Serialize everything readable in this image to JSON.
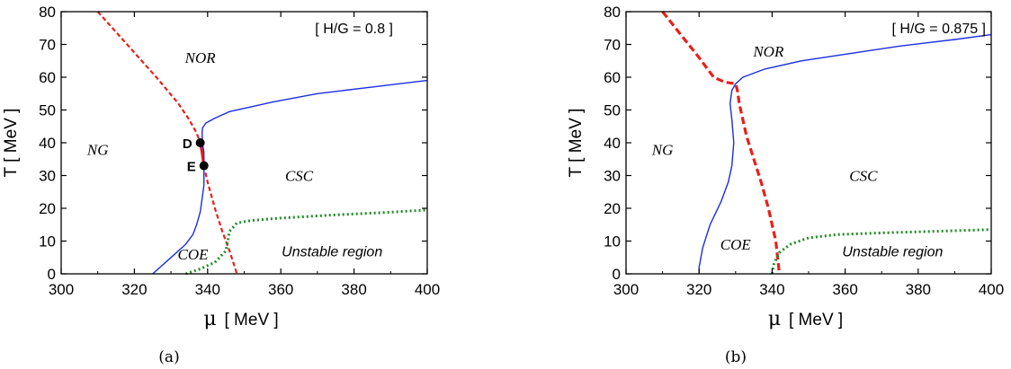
{
  "chart_data": [
    {
      "type": "line",
      "panel_label": "(a)",
      "annotation": "[ H/G  =  0.8 ]",
      "xlabel_symbol": "μ",
      "xlabel_unit": "[ MeV ]",
      "ylabel": "T [ MeV ]",
      "xlim": [
        300,
        400
      ],
      "ylim": [
        0,
        80
      ],
      "xticks": [
        300,
        320,
        340,
        360,
        380,
        400
      ],
      "yticks": [
        0,
        10,
        20,
        30,
        40,
        50,
        60,
        70,
        80
      ],
      "region_labels": [
        {
          "text": "NOR",
          "x": 338,
          "y": 66
        },
        {
          "text": "NG",
          "x": 310,
          "y": 38
        },
        {
          "text": "CSC",
          "x": 365,
          "y": 30
        },
        {
          "text": "COE",
          "x": 336,
          "y": 6
        },
        {
          "text": "Unstable region",
          "x": 374,
          "y": 7
        }
      ],
      "points": [
        {
          "label": "D",
          "x": 338,
          "y": 40
        },
        {
          "label": "E",
          "x": 339,
          "y": 33
        }
      ],
      "series": [
        {
          "style": "red-dashed",
          "color": "#e8201a",
          "points": [
            [
              310,
              80
            ],
            [
              318,
              70
            ],
            [
              326,
              60
            ],
            [
              332,
              52
            ],
            [
              335,
              47
            ],
            [
              336,
              45
            ],
            [
              337,
              43
            ],
            [
              338,
              40
            ]
          ]
        },
        {
          "style": "red-solid-thick",
          "color": "#e8201a",
          "points": [
            [
              338,
              40
            ],
            [
              338.5,
              37
            ],
            [
              339,
              33
            ]
          ]
        },
        {
          "style": "red-dashed",
          "color": "#e8201a",
          "points": [
            [
              339,
              33
            ],
            [
              340,
              28
            ],
            [
              342,
              20
            ],
            [
              344,
              13
            ],
            [
              346,
              7
            ],
            [
              348,
              0
            ]
          ]
        },
        {
          "style": "blue-solid",
          "color": "#1a2ee0",
          "points": [
            [
              325,
              0
            ],
            [
              330,
              5
            ],
            [
              334,
              9
            ],
            [
              336,
              12
            ],
            [
              337,
              15
            ],
            [
              338,
              19
            ],
            [
              338.5,
              23
            ],
            [
              339,
              27
            ],
            [
              339,
              33
            ],
            [
              339,
              37
            ],
            [
              338.6,
              40
            ],
            [
              338.5,
              43
            ],
            [
              338.6,
              44.5
            ],
            [
              339.5,
              46
            ],
            [
              342,
              47.5
            ],
            [
              346,
              49.5
            ],
            [
              350,
              50.5
            ],
            [
              358,
              52.5
            ],
            [
              370,
              55
            ],
            [
              385,
              57
            ],
            [
              400,
              59
            ]
          ]
        },
        {
          "style": "green-dotted",
          "color": "#1f8c25",
          "points": [
            [
              334,
              0
            ],
            [
              338,
              1.5
            ],
            [
              342,
              3.5
            ],
            [
              345,
              7
            ],
            [
              345.5,
              10
            ],
            [
              346,
              13
            ],
            [
              348,
              15.5
            ],
            [
              352,
              16.3
            ],
            [
              360,
              17
            ],
            [
              375,
              18
            ],
            [
              390,
              18.8
            ],
            [
              400,
              19.5
            ]
          ]
        }
      ]
    },
    {
      "type": "line",
      "panel_label": "(b)",
      "annotation": "[ H/G  =  0.875 ]",
      "xlabel_symbol": "μ",
      "xlabel_unit": "[ MeV ]",
      "ylabel": "T [ MeV ]",
      "xlim": [
        300,
        400
      ],
      "ylim": [
        0,
        80
      ],
      "xticks": [
        300,
        320,
        340,
        360,
        380,
        400
      ],
      "yticks": [
        0,
        10,
        20,
        30,
        40,
        50,
        60,
        70,
        80
      ],
      "region_labels": [
        {
          "text": "NOR",
          "x": 339,
          "y": 68
        },
        {
          "text": "NG",
          "x": 310,
          "y": 38
        },
        {
          "text": "CSC",
          "x": 365,
          "y": 30
        },
        {
          "text": "COE",
          "x": 330,
          "y": 9
        },
        {
          "text": "Unstable region",
          "x": 373,
          "y": 7
        }
      ],
      "points": [],
      "series": [
        {
          "style": "red-dashed-thick",
          "color": "#e8201a",
          "points": [
            [
              310,
              80
            ],
            [
              315,
              73
            ],
            [
              320,
              66
            ],
            [
              324,
              60
            ],
            [
              327,
              58.5
            ],
            [
              330,
              58
            ],
            [
              330.5,
              56
            ],
            [
              331,
              52
            ],
            [
              332,
              47
            ],
            [
              333,
              42
            ],
            [
              335,
              35
            ],
            [
              337,
              28
            ],
            [
              339,
              20
            ],
            [
              341,
              10
            ],
            [
              342,
              0
            ]
          ]
        },
        {
          "style": "blue-solid",
          "color": "#1a2ee0",
          "points": [
            [
              320,
              0
            ],
            [
              320,
              2
            ],
            [
              321,
              8
            ],
            [
              323,
              15
            ],
            [
              326,
              22
            ],
            [
              328,
              28
            ],
            [
              329,
              33
            ],
            [
              329.5,
              40
            ],
            [
              329,
              47
            ],
            [
              328.5,
              52
            ],
            [
              329,
              56
            ],
            [
              330,
              58
            ],
            [
              332,
              60
            ],
            [
              338,
              62.5
            ],
            [
              348,
              65
            ],
            [
              360,
              67
            ],
            [
              375,
              69.5
            ],
            [
              390,
              71.5
            ],
            [
              400,
              73
            ]
          ]
        },
        {
          "style": "green-dotted",
          "color": "#1f8c25",
          "points": [
            [
              340,
              0
            ],
            [
              340.5,
              3
            ],
            [
              342,
              6.5
            ],
            [
              345,
              9
            ],
            [
              350,
              11
            ],
            [
              358,
              12
            ],
            [
              370,
              12.5
            ],
            [
              385,
              13
            ],
            [
              400,
              13.5
            ]
          ]
        }
      ]
    }
  ]
}
